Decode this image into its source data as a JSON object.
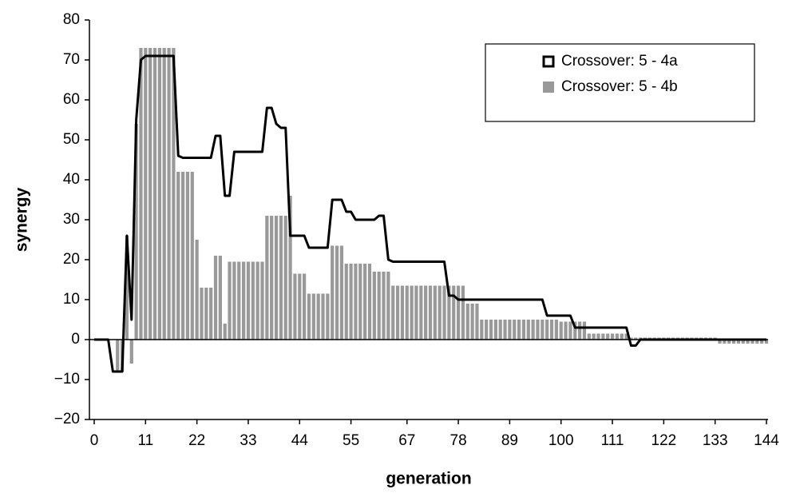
{
  "chart_data": {
    "type": "bar-line",
    "x_label": "generation",
    "y_label": "synergy",
    "x": [
      0,
      1,
      2,
      3,
      4,
      5,
      6,
      7,
      8,
      9,
      10,
      11,
      12,
      13,
      14,
      15,
      16,
      17,
      18,
      19,
      20,
      21,
      22,
      23,
      24,
      25,
      26,
      27,
      28,
      29,
      30,
      31,
      32,
      33,
      34,
      35,
      36,
      37,
      38,
      39,
      40,
      41,
      42,
      43,
      44,
      45,
      46,
      47,
      48,
      49,
      50,
      51,
      52,
      53,
      54,
      55,
      56,
      57,
      58,
      59,
      60,
      61,
      62,
      63,
      64,
      65,
      66,
      67,
      68,
      69,
      70,
      71,
      72,
      73,
      74,
      75,
      76,
      77,
      78,
      79,
      80,
      81,
      82,
      83,
      84,
      85,
      86,
      87,
      88,
      89,
      90,
      91,
      92,
      93,
      94,
      95,
      96,
      97,
      98,
      99,
      100,
      101,
      102,
      103,
      104,
      105,
      106,
      107,
      108,
      109,
      110,
      111,
      112,
      113,
      114,
      115,
      116,
      117,
      118,
      119,
      120,
      121,
      122,
      123,
      124,
      125,
      126,
      127,
      128,
      129,
      130,
      131,
      132,
      133,
      134,
      135,
      136,
      137,
      138,
      139,
      140,
      141,
      142,
      143,
      144
    ],
    "series": [
      {
        "name": "Crossover: 5 - 4a",
        "type": "line",
        "color": "#000000",
        "values": [
          0,
          0,
          0,
          0,
          -8,
          -8,
          -8,
          26,
          5,
          55,
          70,
          71,
          71,
          71,
          71,
          71,
          71,
          71,
          46,
          45.5,
          45.5,
          45.5,
          45.5,
          45.5,
          45.5,
          45.5,
          51,
          51,
          36,
          36,
          47,
          47,
          47,
          47,
          47,
          47,
          47,
          58,
          58,
          54,
          53,
          53,
          26,
          26,
          26,
          26,
          23,
          23,
          23,
          23,
          23,
          35,
          35,
          35,
          32,
          32,
          30,
          30,
          30,
          30,
          30,
          31,
          31,
          20,
          19.5,
          19.5,
          19.5,
          19.5,
          19.5,
          19.5,
          19.5,
          19.5,
          19.5,
          19.5,
          19.5,
          19.5,
          11,
          11,
          10,
          10,
          10,
          10,
          10,
          10,
          10,
          10,
          10,
          10,
          10,
          10,
          10,
          10,
          10,
          10,
          10,
          10,
          10,
          6,
          6,
          6,
          6,
          6,
          6,
          3,
          3,
          3,
          3,
          3,
          3,
          3,
          3,
          3,
          3,
          3,
          3,
          -1.5,
          -1.5,
          0,
          0,
          0,
          0,
          0,
          0,
          0,
          0,
          0,
          0,
          0,
          0,
          0,
          0,
          0,
          0,
          0,
          0,
          0,
          0,
          0,
          0,
          0,
          0,
          0,
          0,
          0,
          0
        ]
      },
      {
        "name": "Crossover: 5 - 4b",
        "type": "bar",
        "color": "#999999",
        "values": [
          0,
          0,
          0,
          0,
          0,
          -8,
          -8,
          26,
          -6,
          54,
          73,
          73,
          73,
          73,
          73,
          73,
          73,
          73,
          42,
          42,
          42,
          42,
          25,
          13,
          13,
          13,
          21,
          21,
          4,
          19.5,
          19.5,
          19.5,
          19.5,
          19.5,
          19.5,
          19.5,
          19.5,
          31,
          31,
          31,
          31,
          31,
          36,
          16.5,
          16.5,
          16.5,
          11.5,
          11.5,
          11.5,
          11.5,
          11.5,
          23.5,
          23.5,
          23.5,
          19,
          19,
          19,
          19,
          19,
          19,
          17,
          17,
          17,
          17,
          13.5,
          13.5,
          13.5,
          13.5,
          13.5,
          13.5,
          13.5,
          13.5,
          13.5,
          13.5,
          13.5,
          13.5,
          13.5,
          13.5,
          13.5,
          13.5,
          9,
          9,
          9,
          5,
          5,
          5,
          5,
          5,
          5,
          5,
          5,
          5,
          5,
          5,
          5,
          5,
          5,
          5,
          5,
          5,
          4.5,
          4.5,
          4.5,
          4.5,
          4.5,
          4.5,
          1.5,
          1.5,
          1.5,
          1.5,
          1.5,
          1.5,
          1.5,
          1.5,
          1.5,
          0.5,
          0.5,
          0.5,
          0.5,
          0.5,
          0.5,
          0.5,
          0.5,
          0.5,
          0.5,
          0.5,
          0.5,
          0.5,
          0.5,
          0.5,
          0.5,
          0.5,
          0.5,
          0.5,
          -1,
          -1,
          -1,
          -1,
          -1,
          -1,
          -1,
          -1,
          -1,
          -1,
          -1
        ]
      }
    ],
    "xlim": [
      0,
      144
    ],
    "xticks": [
      0,
      11,
      22,
      33,
      44,
      55,
      67,
      78,
      89,
      100,
      111,
      122,
      133,
      144
    ],
    "ylim": [
      -20,
      80
    ],
    "yticks": [
      {
        "value": -20,
        "label": "−20"
      },
      {
        "value": -10,
        "label": "−10"
      },
      0,
      10,
      20,
      30,
      40,
      50,
      60,
      70,
      80
    ],
    "grid": false,
    "legend": "upper-right"
  }
}
